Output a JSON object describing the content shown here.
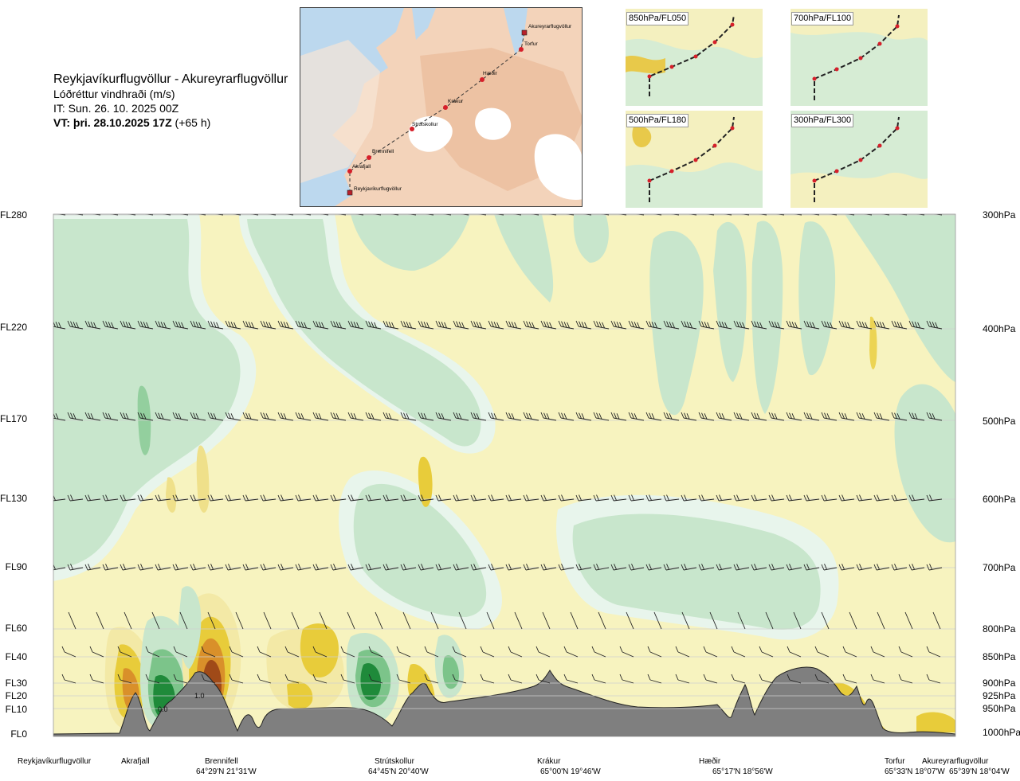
{
  "header": {
    "title": "Reykjavíkurflugvöllur - Akureyrarflugvöllur",
    "subtitle": "Lóðréttur vindhraði (m/s)",
    "issue_time": "IT: Sun. 26. 10. 2025 00Z",
    "valid_time_bold": "VT: þri. 28.10.2025 17Z",
    "valid_time_offset": "(+65 h)"
  },
  "route_map": {
    "waypoints": [
      "Akureyrarflugvöllur",
      "Torfur",
      "Hæðir",
      "Krákur",
      "Strútskollur",
      "Brennifell",
      "Akrafjall",
      "Reykjavíkurflugvöllur"
    ]
  },
  "thumbnails": [
    {
      "label": "850hPa/FL050"
    },
    {
      "label": "700hPa/FL100"
    },
    {
      "label": "500hPa/FL180"
    },
    {
      "label": "300hPa/FL300"
    }
  ],
  "chart_data": {
    "type": "heatmap",
    "title": "Reykjavíkurflugvöllur - Akureyrarflugvöllur",
    "variable": "Lóðréttur vindhraði (m/s)",
    "x_axis_locations": [
      {
        "name": "Reykjavíkurflugvöllur",
        "coord": ""
      },
      {
        "name": "Akrafjall",
        "coord": ""
      },
      {
        "name": "Brennifell",
        "coord": "64°29'N 21°31'W"
      },
      {
        "name": "Strútskollur",
        "coord": "64°45'N 20°40'W"
      },
      {
        "name": "Krákur",
        "coord": "65°00'N 19°46'W"
      },
      {
        "name": "Hæðir",
        "coord": "65°17'N 18°56'W"
      },
      {
        "name": "Torfur",
        "coord": "65°33'N 18°07'W"
      },
      {
        "name": "Akureyrarflugvöllur",
        "coord": "65°39'N 18°04'W"
      }
    ],
    "levels": [
      {
        "fl": "FL280",
        "hpa": "300hPa"
      },
      {
        "fl": "FL220",
        "hpa": "400hPa"
      },
      {
        "fl": "FL170",
        "hpa": "500hPa"
      },
      {
        "fl": "FL130",
        "hpa": "600hPa"
      },
      {
        "fl": "FL90",
        "hpa": "700hPa"
      },
      {
        "fl": "FL60",
        "hpa": "800hPa"
      },
      {
        "fl": "FL40",
        "hpa": "850hPa"
      },
      {
        "fl": "FL30",
        "hpa": "900hPa"
      },
      {
        "fl": "FL20",
        "hpa": "925hPa"
      },
      {
        "fl": "FL10",
        "hpa": "950hPa"
      },
      {
        "fl": "FL0",
        "hpa": "1000hPa"
      }
    ],
    "contour_labels": [
      "0.0",
      "1.0"
    ],
    "color_scale": {
      "strong_down": "#1f8a3a",
      "down": "#7cc48a",
      "weak_down": "#c8e6cc",
      "near_zero_down": "#e8f5ec",
      "near_zero_up": "#f7f3bf",
      "weak_up": "#f3e9a6",
      "up": "#e8cc3a",
      "strong_up": "#d9902a",
      "very_strong_up": "#a04a18"
    },
    "terrain_color": "#7f7f7f"
  }
}
